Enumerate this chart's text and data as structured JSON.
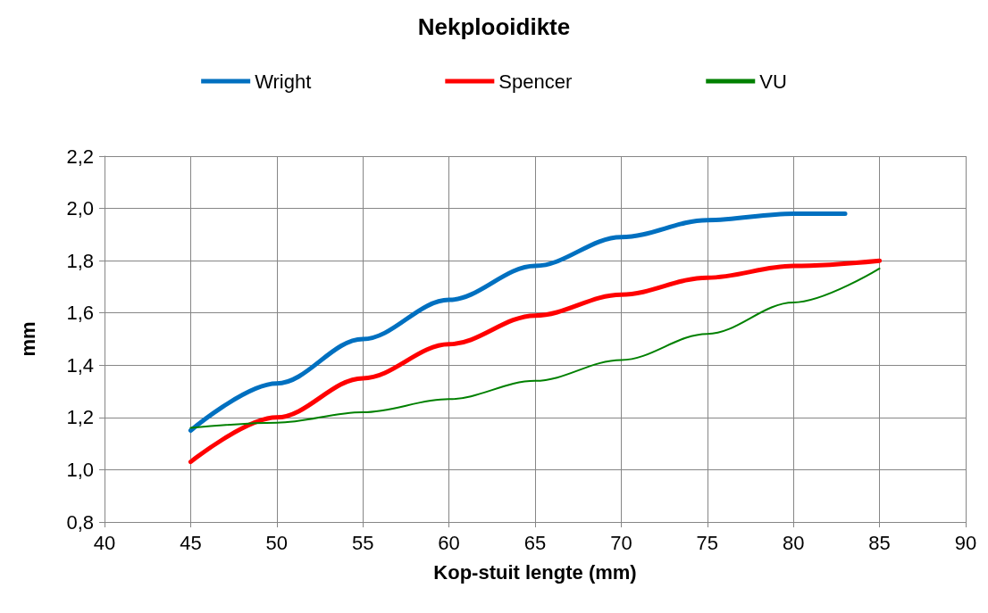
{
  "chart_data": {
    "type": "line",
    "title": "Nekplooidikte",
    "xlabel": "Kop-stuit lengte (mm)",
    "ylabel": "mm",
    "x": [
      45,
      50,
      55,
      60,
      65,
      70,
      75,
      80,
      85
    ],
    "series": [
      {
        "name": "Wright",
        "color": "#0070c0",
        "x": [
          45,
          50,
          55,
          60,
          65,
          70,
          75,
          80,
          83
        ],
        "values": [
          1.15,
          1.33,
          1.5,
          1.65,
          1.78,
          1.89,
          1.955,
          1.98,
          1.98
        ]
      },
      {
        "name": "Spencer",
        "color": "#ff0000",
        "values": [
          1.03,
          1.2,
          1.35,
          1.48,
          1.59,
          1.67,
          1.735,
          1.78,
          1.8
        ]
      },
      {
        "name": "VU",
        "color": "#008000",
        "values": [
          1.16,
          1.18,
          1.22,
          1.27,
          1.34,
          1.42,
          1.52,
          1.64,
          1.77
        ]
      }
    ],
    "xlim": [
      40,
      90
    ],
    "xticks": [
      40,
      45,
      50,
      55,
      60,
      65,
      70,
      75,
      80,
      85,
      90
    ],
    "ylim": [
      0.8,
      2.2
    ],
    "yticks": [
      {
        "value": 0.8,
        "label": "0,8"
      },
      {
        "value": 1.0,
        "label": "1,0"
      },
      {
        "value": 1.2,
        "label": "1,2"
      },
      {
        "value": 1.4,
        "label": "1,4"
      },
      {
        "value": 1.6,
        "label": "1,6"
      },
      {
        "value": 1.8,
        "label": "1,8"
      },
      {
        "value": 2.0,
        "label": "2,0"
      },
      {
        "value": 2.2,
        "label": "2,2"
      }
    ],
    "grid": true,
    "legend": "top",
    "marker": "none",
    "line_style": "solid"
  }
}
